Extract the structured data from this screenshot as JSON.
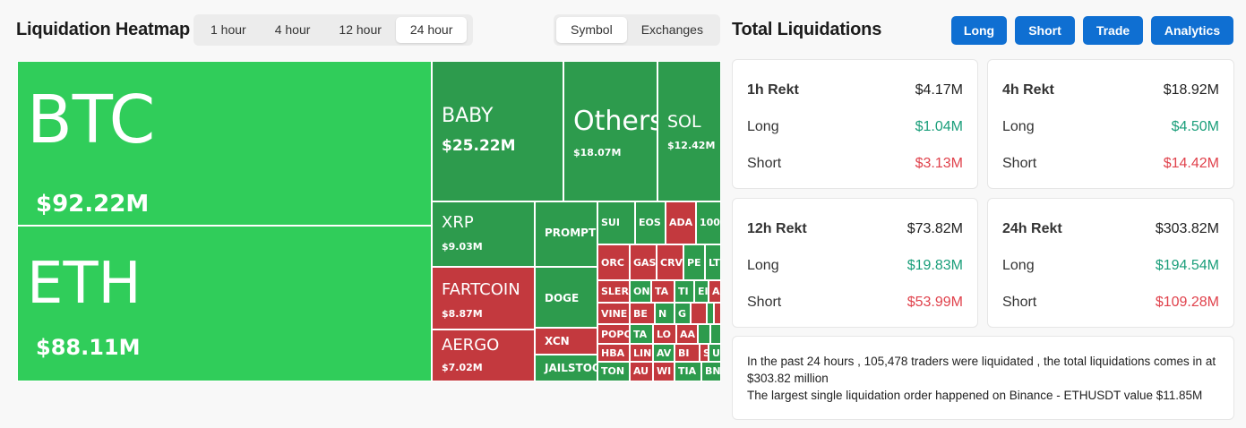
{
  "heatmap_title": "Liquidation Heatmap",
  "timeframes": [
    "1 hour",
    "4 hour",
    "12 hour",
    "24 hour"
  ],
  "active_timeframe": "24 hour",
  "view_modes": [
    "Symbol",
    "Exchanges"
  ],
  "active_view": "Symbol",
  "total_title": "Total Liquidations",
  "actions": {
    "long": "Long",
    "short": "Short",
    "trade": "Trade",
    "analytics": "Analytics"
  },
  "colors": {
    "green_light": "#30cd5a",
    "green_dark": "#2d9b4d",
    "red": "#c3393e",
    "button_blue": "#0f6fd2",
    "positive": "#1a9e7a",
    "negative": "#e0424c"
  },
  "tiles": [
    {
      "symbol": "BTC",
      "amount": "$92.22M",
      "color": "g1"
    },
    {
      "symbol": "ETH",
      "amount": "$88.11M",
      "color": "g1"
    },
    {
      "symbol": "BABY",
      "amount": "$25.22M",
      "color": "g2"
    },
    {
      "symbol": "Others",
      "amount": "$18.07M",
      "color": "g2"
    },
    {
      "symbol": "SOL",
      "amount": "$12.42M",
      "color": "g2"
    },
    {
      "symbol": "XRP",
      "amount": "$9.03M",
      "color": "g2"
    },
    {
      "symbol": "FARTCOIN",
      "amount": "$8.87M",
      "color": "r1"
    },
    {
      "symbol": "AERGO",
      "amount": "$7.02M",
      "color": "r1"
    },
    {
      "symbol": "PROMPT",
      "amount": "",
      "color": "g2"
    },
    {
      "symbol": "DOGE",
      "amount": "",
      "color": "g2"
    },
    {
      "symbol": "XCN",
      "amount": "",
      "color": "r1"
    },
    {
      "symbol": "JAILSTOOL",
      "amount": "",
      "color": "g2"
    },
    {
      "symbol": "SUI",
      "amount": "",
      "color": "g2"
    },
    {
      "symbol": "EOS",
      "amount": "",
      "color": "g2"
    },
    {
      "symbol": "ADA",
      "amount": "",
      "color": "r1"
    },
    {
      "symbol": "100",
      "amount": "",
      "color": "g2"
    },
    {
      "symbol": "ORC",
      "amount": "",
      "color": "r1"
    },
    {
      "symbol": "GAS",
      "amount": "",
      "color": "r1"
    },
    {
      "symbol": "CRV",
      "amount": "",
      "color": "r1"
    },
    {
      "symbol": "PE",
      "amount": "",
      "color": "g2"
    },
    {
      "symbol": "LT",
      "amount": "",
      "color": "g2"
    },
    {
      "symbol": "SLER",
      "amount": "",
      "color": "r1"
    },
    {
      "symbol": "ON",
      "amount": "",
      "color": "g2"
    },
    {
      "symbol": "TA",
      "amount": "",
      "color": "r1"
    },
    {
      "symbol": "TI",
      "amount": "",
      "color": "g2"
    },
    {
      "symbol": "EI",
      "amount": "",
      "color": "g2"
    },
    {
      "symbol": "AE",
      "amount": "",
      "color": "r1"
    },
    {
      "symbol": "VINE",
      "amount": "",
      "color": "r1"
    },
    {
      "symbol": "BE",
      "amount": "",
      "color": "r1"
    },
    {
      "symbol": "N",
      "amount": "",
      "color": "g2"
    },
    {
      "symbol": "G",
      "amount": "",
      "color": "g2"
    },
    {
      "symbol": "",
      "amount": "",
      "color": "r1"
    },
    {
      "symbol": "",
      "amount": "",
      "color": "g2"
    },
    {
      "symbol": "",
      "amount": "",
      "color": "r1"
    },
    {
      "symbol": "POPC",
      "amount": "",
      "color": "r1"
    },
    {
      "symbol": "TA",
      "amount": "",
      "color": "g2"
    },
    {
      "symbol": "LO",
      "amount": "",
      "color": "r1"
    },
    {
      "symbol": "AA",
      "amount": "",
      "color": "r1"
    },
    {
      "symbol": "",
      "amount": "",
      "color": "g2"
    },
    {
      "symbol": "",
      "amount": "",
      "color": "g2"
    },
    {
      "symbol": "HBA",
      "amount": "",
      "color": "r1"
    },
    {
      "symbol": "LIN",
      "amount": "",
      "color": "r1"
    },
    {
      "symbol": "AV",
      "amount": "",
      "color": "g2"
    },
    {
      "symbol": "BI",
      "amount": "",
      "color": "r1"
    },
    {
      "symbol": "SH",
      "amount": "",
      "color": "r1"
    },
    {
      "symbol": "US",
      "amount": "",
      "color": "g2"
    },
    {
      "symbol": "TON",
      "amount": "",
      "color": "g2"
    },
    {
      "symbol": "AU",
      "amount": "",
      "color": "r1"
    },
    {
      "symbol": "WI",
      "amount": "",
      "color": "r1"
    },
    {
      "symbol": "TIA",
      "amount": "",
      "color": "g2"
    },
    {
      "symbol": "BN",
      "amount": "",
      "color": "g2"
    }
  ],
  "rekt_cards": [
    {
      "title": "1h Rekt",
      "total": "$4.17M",
      "long_label": "Long",
      "long": "$1.04M",
      "short_label": "Short",
      "short": "$3.13M"
    },
    {
      "title": "4h Rekt",
      "total": "$18.92M",
      "long_label": "Long",
      "long": "$4.50M",
      "short_label": "Short",
      "short": "$14.42M"
    },
    {
      "title": "12h Rekt",
      "total": "$73.82M",
      "long_label": "Long",
      "long": "$19.83M",
      "short_label": "Short",
      "short": "$53.99M"
    },
    {
      "title": "24h Rekt",
      "total": "$303.82M",
      "long_label": "Long",
      "long": "$194.54M",
      "short_label": "Short",
      "short": "$109.28M"
    }
  ],
  "summary": {
    "line1": "In the past 24 hours , 105,478 traders were liquidated , the total liquidations comes in at $303.82 million",
    "line2": "The largest single liquidation order happened on Binance - ETHUSDT value $11.85M"
  }
}
